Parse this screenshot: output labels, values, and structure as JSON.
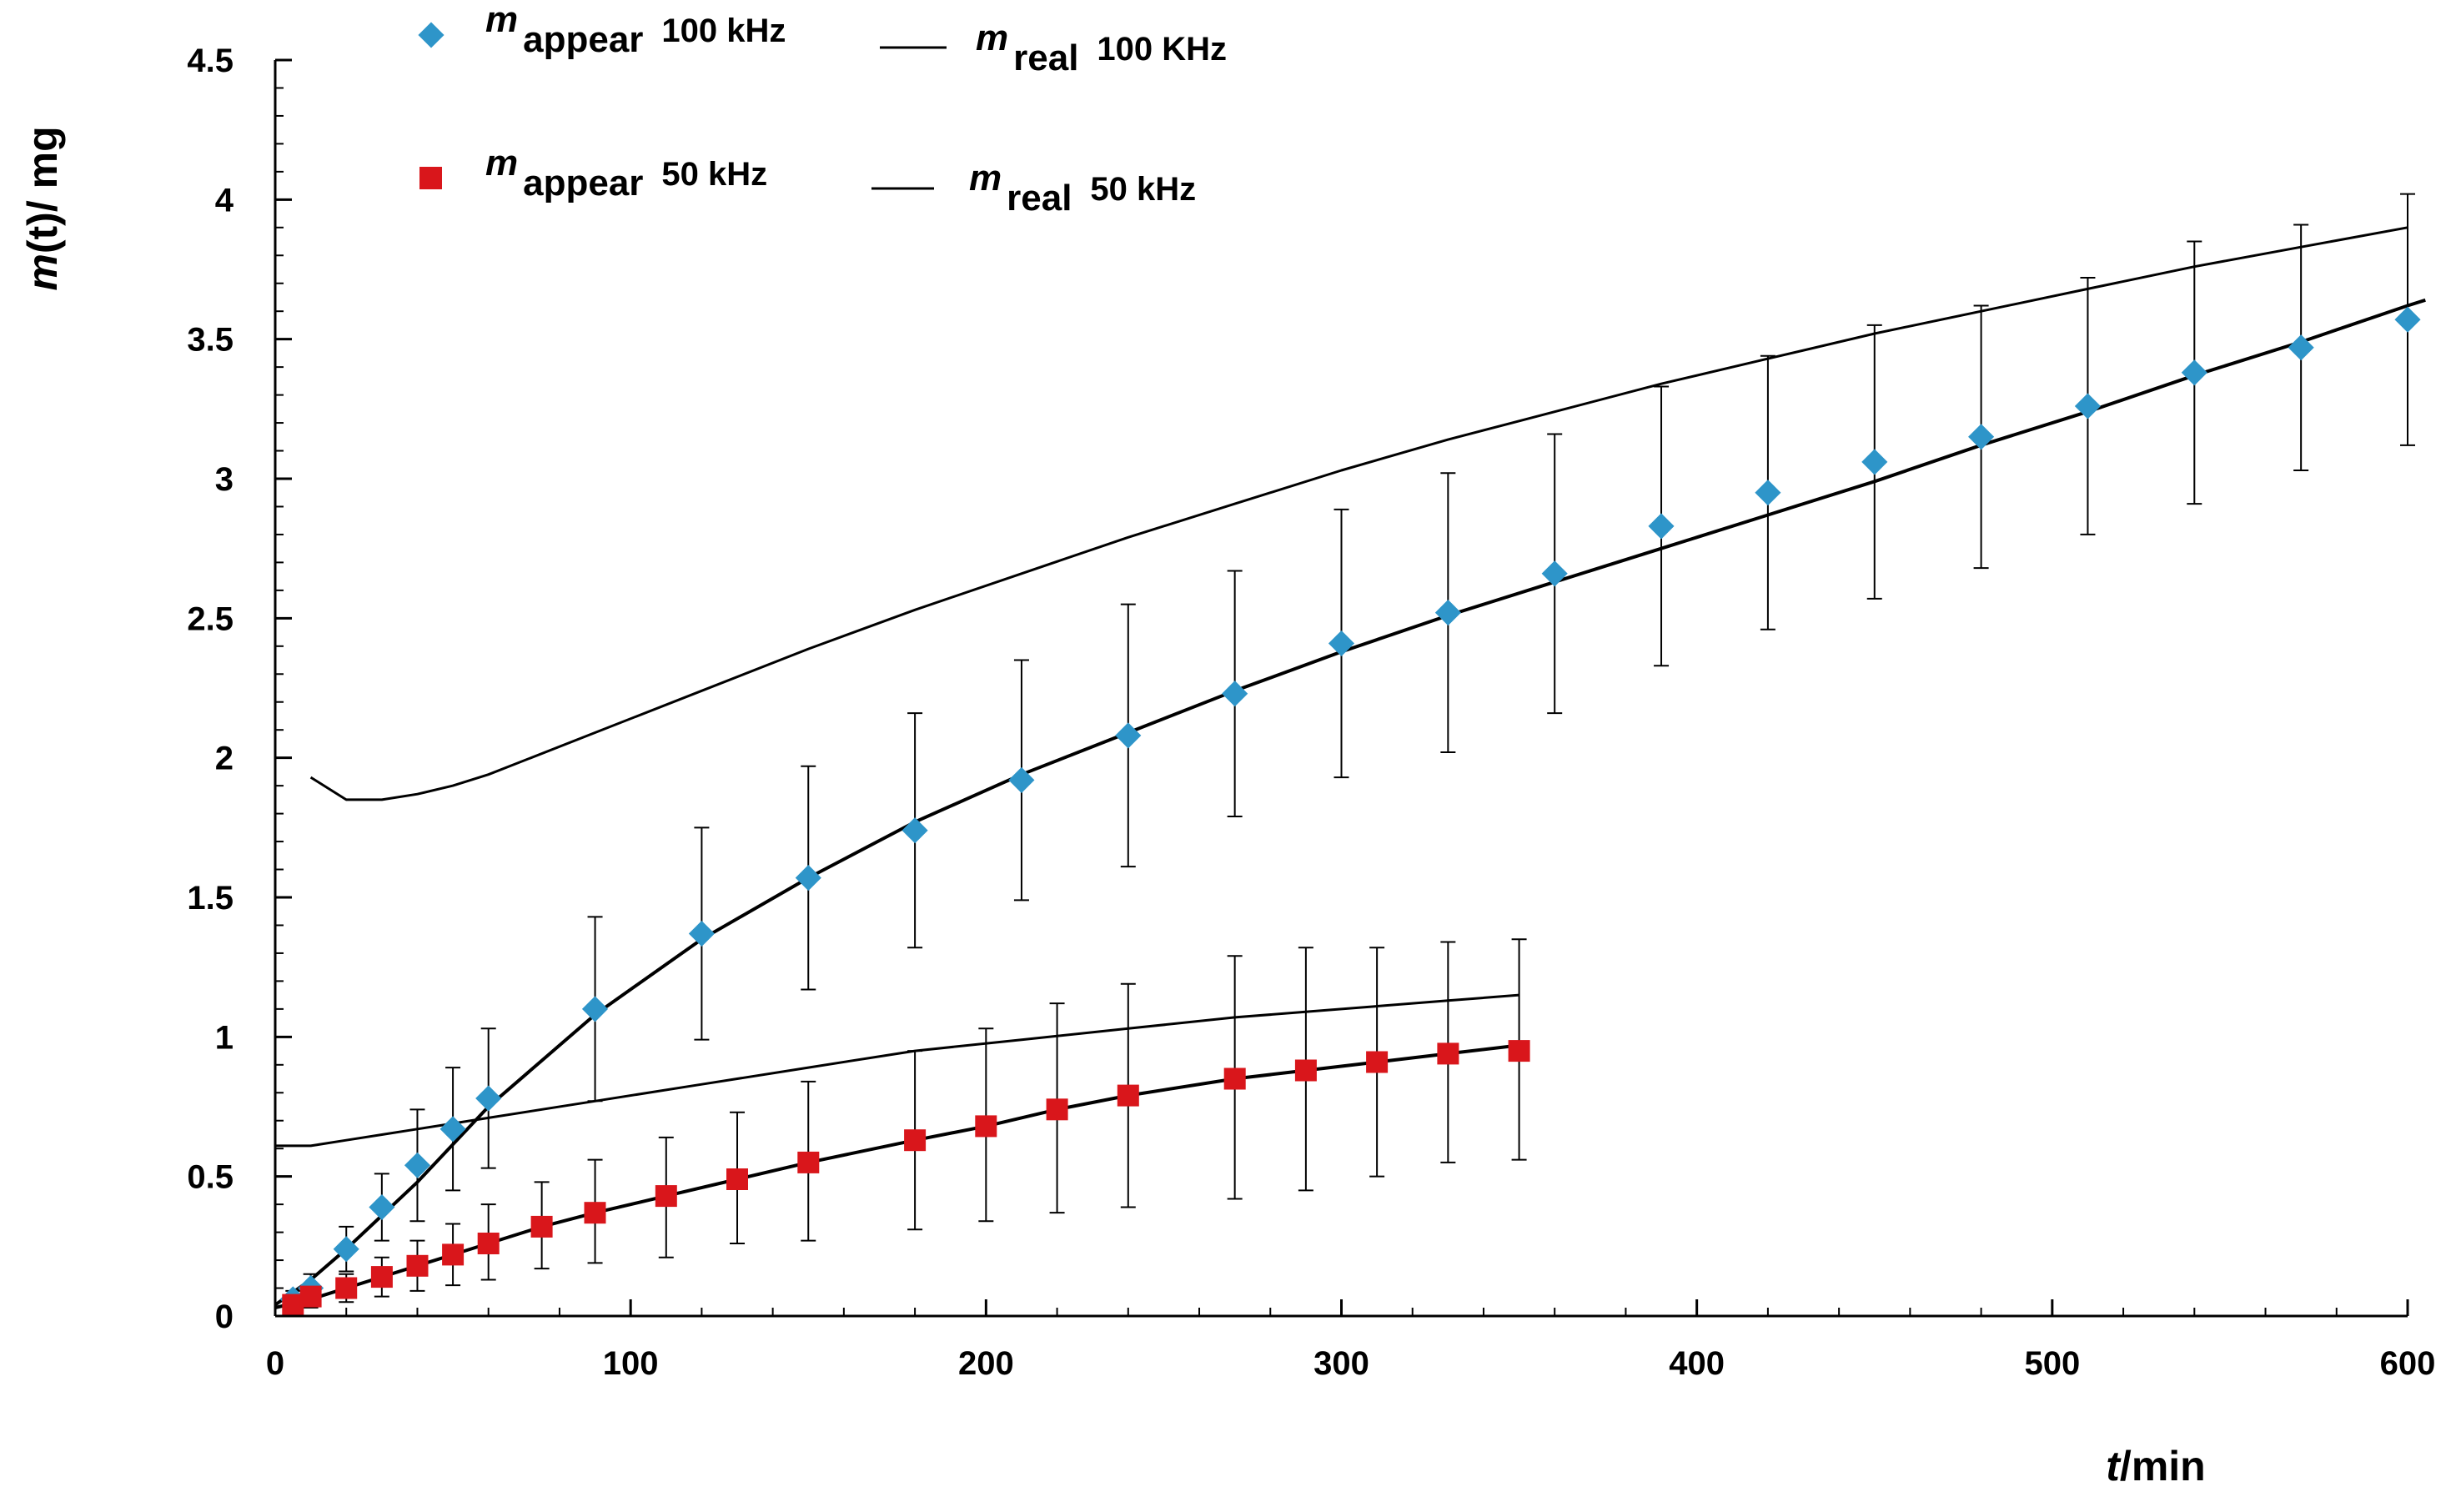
{
  "chart_data": {
    "type": "scatter",
    "title": "",
    "xlabel": "t/min",
    "ylabel": "m(t)/ mg",
    "xlabel_parts": [
      "t",
      "/min"
    ],
    "ylabel_parts": [
      "m",
      "(t)/ mg"
    ],
    "xlim": [
      0,
      600
    ],
    "ylim": [
      0,
      4.5
    ],
    "xticks": [
      0,
      100,
      200,
      300,
      400,
      500,
      600
    ],
    "yticks": [
      0,
      0.5,
      1,
      1.5,
      2,
      2.5,
      3,
      3.5,
      4,
      4.5
    ],
    "xtick_labels": [
      "0",
      "100",
      "200",
      "300",
      "400",
      "500",
      "600"
    ],
    "ytick_labels": [
      "0",
      "0.5",
      "1",
      "1.5",
      "2",
      "2.5",
      "3",
      "3.5",
      "4",
      "4.5"
    ],
    "grid": false,
    "legend_position": "top-left",
    "series": [
      {
        "name": "m appear 100 kHz",
        "legend": {
          "sym": "m",
          "sub": "appear",
          "tail": "100 kHz"
        },
        "kind": "scatter",
        "marker": "diamond",
        "color": "#2e95c9",
        "x": [
          5,
          10,
          20,
          30,
          40,
          50,
          60,
          90,
          120,
          150,
          180,
          210,
          240,
          270,
          300,
          330,
          360,
          390,
          420,
          450,
          480,
          510,
          540,
          570,
          600
        ],
        "y": [
          0.06,
          0.1,
          0.24,
          0.39,
          0.54,
          0.67,
          0.78,
          1.1,
          1.37,
          1.57,
          1.74,
          1.92,
          2.08,
          2.23,
          2.41,
          2.52,
          2.66,
          2.83,
          2.95,
          3.06,
          3.15,
          3.26,
          3.38,
          3.47,
          3.57
        ],
        "err": [
          0.03,
          0.05,
          0.08,
          0.12,
          0.2,
          0.22,
          0.25,
          0.33,
          0.38,
          0.4,
          0.42,
          0.43,
          0.47,
          0.44,
          0.48,
          0.5,
          0.5,
          0.5,
          0.49,
          0.49,
          0.47,
          0.46,
          0.47,
          0.44,
          0.45
        ]
      },
      {
        "name": "m real 100 KHz",
        "legend": {
          "sym": "m",
          "sub": "real",
          "tail": "100 KHz"
        },
        "kind": "line",
        "color": "#000000",
        "x": [
          10,
          20,
          30,
          40,
          50,
          60,
          90,
          120,
          150,
          180,
          210,
          240,
          270,
          300,
          330,
          360,
          390,
          420,
          450,
          480,
          510,
          540,
          570,
          600
        ],
        "y": [
          1.93,
          1.85,
          1.85,
          1.87,
          1.9,
          1.94,
          2.09,
          2.24,
          2.39,
          2.53,
          2.66,
          2.79,
          2.91,
          3.03,
          3.14,
          3.24,
          3.34,
          3.43,
          3.52,
          3.6,
          3.68,
          3.76,
          3.83,
          3.9
        ]
      },
      {
        "name": "m appear 50 kHz",
        "legend": {
          "sym": "m",
          "sub": "appear",
          "tail": "50 kHz"
        },
        "kind": "scatter",
        "marker": "square",
        "color": "#d9161b",
        "x": [
          5,
          10,
          20,
          30,
          40,
          50,
          60,
          75,
          90,
          110,
          130,
          150,
          180,
          200,
          220,
          240,
          270,
          290,
          310,
          330,
          350
        ],
        "y": [
          0.04,
          0.07,
          0.1,
          0.14,
          0.18,
          0.22,
          0.26,
          0.32,
          0.37,
          0.43,
          0.49,
          0.55,
          0.63,
          0.68,
          0.74,
          0.79,
          0.85,
          0.88,
          0.91,
          0.94,
          0.95
        ]
      },
      {
        "name": "m real 50 kHz",
        "legend": {
          "sym": "m",
          "sub": "real",
          "tail": "50 kHz"
        },
        "kind": "line",
        "color": "#000000",
        "x": [
          0,
          10,
          20,
          30,
          40,
          50,
          60,
          90,
          120,
          150,
          180,
          210,
          240,
          270,
          300,
          330,
          350
        ],
        "y": [
          0.61,
          0.61,
          0.63,
          0.65,
          0.67,
          0.69,
          0.71,
          0.77,
          0.83,
          0.89,
          0.95,
          0.99,
          1.03,
          1.07,
          1.1,
          1.13,
          1.15
        ]
      },
      {
        "name": "50 kHz error bars",
        "kind": "errorbar",
        "color": "#000000",
        "x": [
          5,
          10,
          20,
          30,
          40,
          50,
          60,
          75,
          90,
          110,
          130,
          150,
          180,
          200,
          220,
          240,
          270,
          290,
          310,
          330,
          350
        ],
        "y_low": [
          0.02,
          0.03,
          0.05,
          0.07,
          0.09,
          0.11,
          0.13,
          0.17,
          0.19,
          0.21,
          0.26,
          0.27,
          0.31,
          0.34,
          0.37,
          0.39,
          0.42,
          0.45,
          0.5,
          0.55,
          0.56
        ],
        "y_high": [
          0.07,
          0.1,
          0.15,
          0.21,
          0.27,
          0.33,
          0.4,
          0.48,
          0.56,
          0.64,
          0.73,
          0.84,
          0.95,
          1.03,
          1.12,
          1.19,
          1.29,
          1.32,
          1.32,
          1.34,
          1.35
        ]
      },
      {
        "name": "100 kHz fit",
        "kind": "line",
        "color": "#000000",
        "x": [
          0,
          10,
          20,
          30,
          40,
          60,
          90,
          120,
          150,
          180,
          210,
          240,
          270,
          300,
          330,
          360,
          390,
          420,
          450,
          480,
          510,
          540,
          570,
          600,
          605
        ],
        "y": [
          0.04,
          0.13,
          0.24,
          0.36,
          0.48,
          0.75,
          1.08,
          1.35,
          1.57,
          1.77,
          1.94,
          2.09,
          2.24,
          2.38,
          2.51,
          2.63,
          2.75,
          2.87,
          2.99,
          3.12,
          3.24,
          3.37,
          3.49,
          3.62,
          3.64
        ]
      },
      {
        "name": "50 kHz fit",
        "kind": "line",
        "color": "#000000",
        "x": [
          0,
          10,
          30,
          50,
          75,
          90,
          110,
          130,
          150,
          180,
          200,
          220,
          240,
          270,
          290,
          310,
          330,
          350
        ],
        "y": [
          0.03,
          0.06,
          0.14,
          0.22,
          0.32,
          0.37,
          0.43,
          0.49,
          0.55,
          0.63,
          0.68,
          0.74,
          0.79,
          0.85,
          0.88,
          0.91,
          0.94,
          0.97
        ]
      }
    ]
  }
}
